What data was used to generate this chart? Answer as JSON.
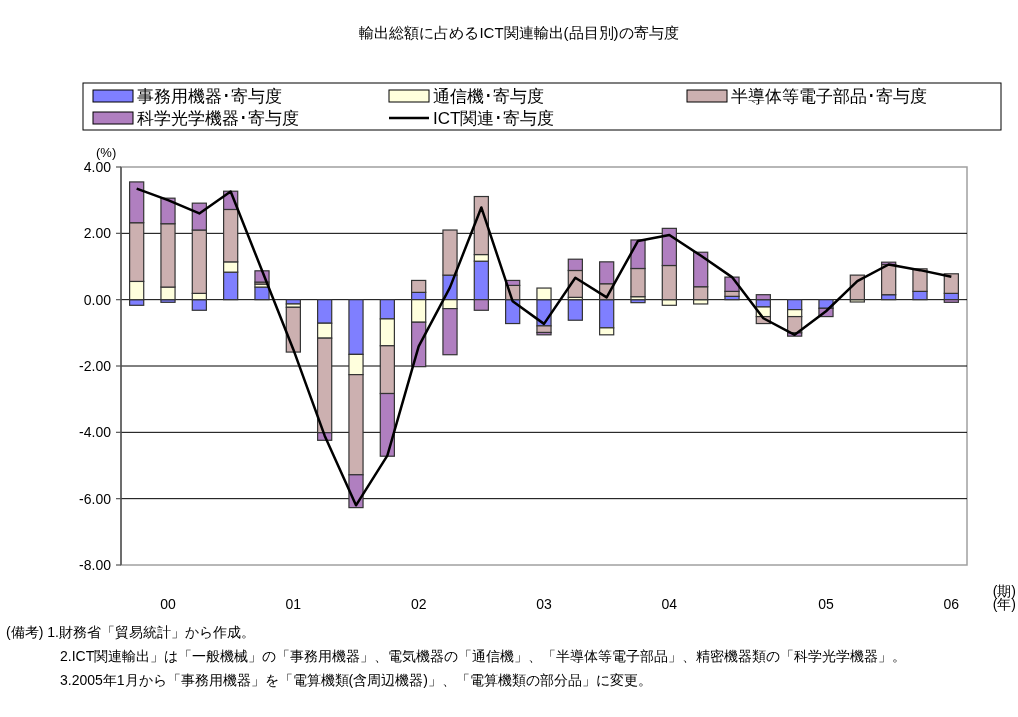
{
  "chart_data": {
    "type": "bar",
    "stacked": true,
    "title": "輸出総額に占めるICT関連輸出(品目別)の寄与度",
    "ylabel": "(%)",
    "xlabel": "(年)",
    "categories": [
      null,
      "00",
      null,
      null,
      null,
      "01",
      null,
      null,
      null,
      "02",
      null,
      null,
      null,
      "03",
      null,
      null,
      null,
      "04",
      null,
      null,
      null,
      null,
      "05",
      null,
      null,
      null,
      "06"
    ],
    "series": [
      {
        "name": "事務用機器･寄与度",
        "color": "#7f7fff",
        "values": [
          -0.17,
          -0.08,
          -0.32,
          0.83,
          0.38,
          -0.13,
          -0.71,
          -1.65,
          -0.58,
          0.22,
          0.74,
          1.16,
          -0.72,
          -0.79,
          -0.62,
          -0.85,
          -0.09,
          null,
          null,
          0.1,
          -0.22,
          -0.3,
          -0.26,
          null,
          0.15,
          0.25,
          0.19
        ]
      },
      {
        "name": "通信機･寄与度",
        "color": "#ffffdd",
        "values": [
          0.55,
          0.38,
          0.19,
          0.31,
          0.09,
          -0.1,
          -0.45,
          -0.61,
          -0.81,
          -0.68,
          -0.27,
          0.2,
          null,
          0.35,
          0.07,
          -0.21,
          0.09,
          -0.17,
          -0.13,
          null,
          -0.29,
          -0.21,
          null,
          -0.07,
          null,
          null,
          null
        ]
      },
      {
        "name": "半導体等電子部品･寄与度",
        "color": "#ccb0b0",
        "values": [
          1.77,
          1.91,
          1.91,
          1.58,
          0.06,
          -1.35,
          -2.85,
          -3.02,
          -1.44,
          0.36,
          1.36,
          1.75,
          0.43,
          -0.2,
          0.81,
          0.48,
          0.85,
          1.03,
          0.39,
          0.15,
          -0.21,
          -0.49,
          null,
          0.74,
          0.91,
          0.68,
          0.59
        ]
      },
      {
        "name": "科学光学機器･寄与度",
        "color": "#b07fc0",
        "values": [
          1.23,
          0.77,
          0.81,
          0.55,
          0.34,
          null,
          -0.23,
          -0.99,
          -1.89,
          -1.34,
          -1.39,
          -0.32,
          0.15,
          -0.07,
          0.34,
          0.66,
          0.86,
          1.12,
          1.04,
          0.43,
          0.15,
          -0.1,
          -0.25,
          null,
          0.07,
          null,
          -0.08
        ]
      },
      {
        "name": "ICT関連･寄与度",
        "type": "line",
        "color": "#000000",
        "values": [
          3.35,
          3.0,
          2.6,
          3.26,
          0.88,
          -1.5,
          -4.1,
          -6.2,
          -4.7,
          -1.41,
          0.37,
          2.78,
          -0.05,
          -0.73,
          0.66,
          0.07,
          1.77,
          1.95,
          1.33,
          0.68,
          -0.56,
          -1.06,
          -0.35,
          0.56,
          1.06,
          0.89,
          0.69
        ]
      }
    ],
    "ylim": [
      -8,
      4
    ],
    "yticks": [
      {
        "value": -8,
        "label": "-8.00"
      },
      {
        "value": -6,
        "label": "-6.00"
      },
      {
        "value": -4,
        "label": "-4.00"
      },
      {
        "value": -2,
        "label": "-2.00"
      },
      {
        "value": 0,
        "label": "0.00"
      },
      {
        "value": 2,
        "label": "2.00"
      },
      {
        "value": 4,
        "label": "4.00"
      }
    ],
    "grid": "y",
    "legend": "top",
    "annotations": [
      "(期)",
      "(備考) 1.財務省「貿易統計」から作成。",
      "2.ICT関連輸出」は「一般機械」の「事務用機器」、電気機器の「通信機」、「半導体等電子部品」、精密機器類の「科学光学機器」。",
      "3.2005年1月から「事務用機器」を「電算機類(含周辺機器)」、「電算機類の部分品」に変更。"
    ]
  }
}
